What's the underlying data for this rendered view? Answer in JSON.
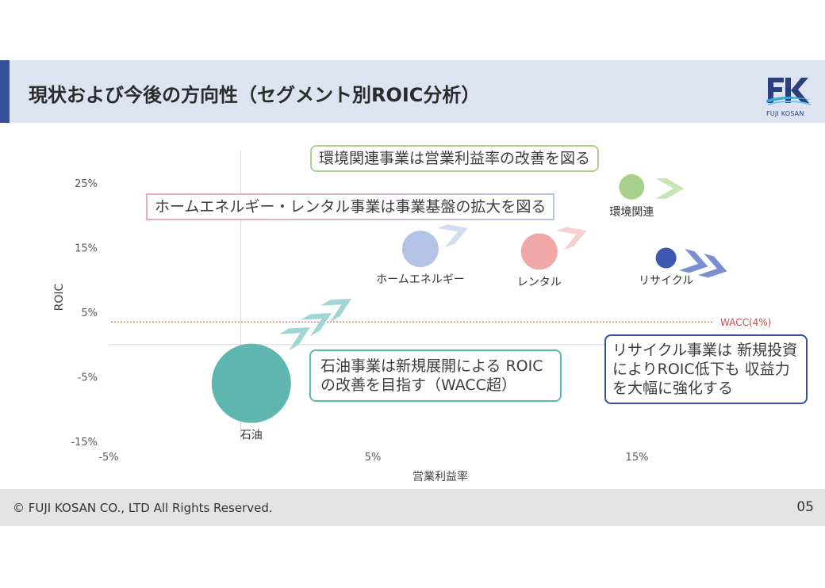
{
  "header": {
    "title": "現状および今後の方向性（セグメント別ROIC分析）"
  },
  "logo": {
    "text": "FUJI KOSAN"
  },
  "chart_data": {
    "type": "scatter",
    "xlabel": "営業利益率",
    "ylabel": "ROIC",
    "xlim": [
      -5,
      20
    ],
    "ylim": [
      -15,
      28
    ],
    "xticks": [
      {
        "v": -5,
        "label": "-5%"
      },
      {
        "v": 5,
        "label": "5%"
      },
      {
        "v": 15,
        "label": "15%"
      }
    ],
    "yticks": [
      {
        "v": 25,
        "label": "25%"
      },
      {
        "v": 15,
        "label": "15%"
      },
      {
        "v": 5,
        "label": "5%"
      },
      {
        "v": -5,
        "label": "-5%"
      },
      {
        "v": -15,
        "label": "-15%"
      }
    ],
    "reference_line": {
      "y": 3.5,
      "label": "WACC(4%)",
      "color": "#c0504d"
    },
    "points": [
      {
        "name": "環境関連",
        "x": 14.8,
        "y": 24.4,
        "size": 16,
        "color": "#a9d18e",
        "arrow": "single",
        "arrow_color": "#c8e6b5"
      },
      {
        "name": "ホームエネルギー",
        "x": 6.8,
        "y": 14.8,
        "size": 23,
        "color": "#b4c2e6",
        "arrow": "single",
        "arrow_color": "#d3dcf0"
      },
      {
        "name": "レンタル",
        "x": 11.3,
        "y": 14.4,
        "size": 23,
        "color": "#f0a7a7",
        "arrow": "single",
        "arrow_color": "#f6d0d0"
      },
      {
        "name": "リサイクル",
        "x": 16.1,
        "y": 13.4,
        "size": 13,
        "color": "#3c58b0",
        "arrow": "double",
        "arrow_color": "#7b8fd0"
      },
      {
        "name": "石油",
        "x": 0.4,
        "y": -6.0,
        "size": 50,
        "color": "#5fb5b0",
        "arrow": "double",
        "arrow_color": "#9fd6d3"
      }
    ]
  },
  "callouts": {
    "environment": "環境関連事業は営業利益率の改善を図る",
    "home_rental": "ホームエネルギー・レンタル事業は事業基盤の拡大を図る",
    "oil": "石油事業は新規展開による ROICの改善を目指す（WACC超）",
    "recycle": "リサイクル事業は 新規投資によりROIC低下も 収益力を大幅に強化する"
  },
  "footer": {
    "copyright": "© FUJI KOSAN CO., LTD All Rights Reserved.",
    "page": "05"
  }
}
